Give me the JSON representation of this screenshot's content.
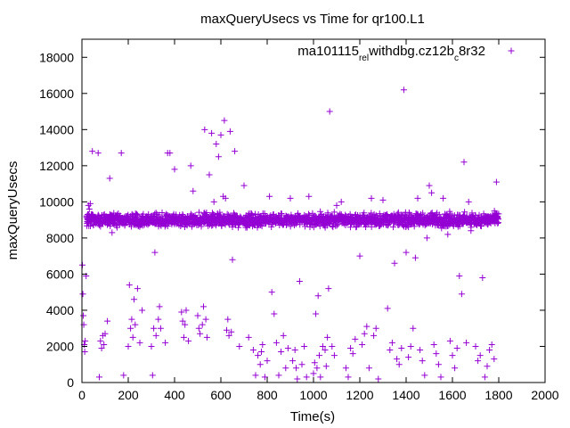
{
  "chart_data": {
    "type": "scatter",
    "title": "maxQueryUsecs vs Time for qr100.L1",
    "xlabel": "Time(s)",
    "ylabel": "maxQueryUsecs",
    "xlim": [
      0,
      2000
    ],
    "ylim": [
      0,
      19000
    ],
    "x_ticks": [
      0,
      200,
      400,
      600,
      800,
      1000,
      1200,
      1400,
      1600,
      1800,
      2000
    ],
    "y_ticks": [
      0,
      2000,
      4000,
      6000,
      8000,
      10000,
      12000,
      14000,
      16000,
      18000
    ],
    "grid": false,
    "legend_position": "top-right",
    "marker": "plus",
    "series": [
      {
        "name": "ma101115_rel_withdbg.cz12b_c8r32",
        "name_parts": [
          {
            "text": "ma101115",
            "sub": false
          },
          {
            "text": "rel",
            "sub": true
          },
          {
            "text": "withdbg.cz12b",
            "sub": false
          },
          {
            "text": "c",
            "sub": true
          },
          {
            "text": "8r32",
            "sub": false
          }
        ],
        "color": "#9400d3",
        "points": [
          [
            2,
            6500
          ],
          [
            4,
            4900
          ],
          [
            6,
            3700
          ],
          [
            8,
            3200
          ],
          [
            10,
            2100
          ],
          [
            12,
            1700
          ],
          [
            14,
            2300
          ],
          [
            18,
            5900
          ],
          [
            22,
            8800
          ],
          [
            25,
            9300
          ],
          [
            28,
            9800
          ],
          [
            32,
            9600
          ],
          [
            36,
            9900
          ],
          [
            40,
            9300
          ],
          [
            45,
            12800
          ],
          [
            50,
            9100
          ],
          [
            60,
            9000
          ],
          [
            70,
            12700
          ],
          [
            75,
            300
          ],
          [
            80,
            2300
          ],
          [
            85,
            1900
          ],
          [
            90,
            2600
          ],
          [
            95,
            2100
          ],
          [
            100,
            2700
          ],
          [
            110,
            3400
          ],
          [
            120,
            11300
          ],
          [
            130,
            8300
          ],
          [
            150,
            9000
          ],
          [
            170,
            12700
          ],
          [
            180,
            400
          ],
          [
            200,
            2000
          ],
          [
            205,
            5400
          ],
          [
            210,
            3000
          ],
          [
            215,
            3500
          ],
          [
            220,
            2500
          ],
          [
            225,
            4600
          ],
          [
            230,
            3200
          ],
          [
            240,
            5200
          ],
          [
            250,
            2200
          ],
          [
            260,
            4000
          ],
          [
            270,
            8900
          ],
          [
            280,
            9200
          ],
          [
            300,
            2000
          ],
          [
            305,
            400
          ],
          [
            310,
            3000
          ],
          [
            315,
            7200
          ],
          [
            320,
            2600
          ],
          [
            330,
            3500
          ],
          [
            335,
            4200
          ],
          [
            340,
            3000
          ],
          [
            360,
            2200
          ],
          [
            370,
            12700
          ],
          [
            380,
            12700
          ],
          [
            400,
            11800
          ],
          [
            410,
            9000
          ],
          [
            430,
            3900
          ],
          [
            435,
            3400
          ],
          [
            440,
            2500
          ],
          [
            445,
            3200
          ],
          [
            450,
            4000
          ],
          [
            460,
            2300
          ],
          [
            470,
            12000
          ],
          [
            480,
            10600
          ],
          [
            500,
            3700
          ],
          [
            505,
            3000
          ],
          [
            510,
            2700
          ],
          [
            520,
            3200
          ],
          [
            525,
            4200
          ],
          [
            530,
            14000
          ],
          [
            535,
            3500
          ],
          [
            540,
            2500
          ],
          [
            550,
            11500
          ],
          [
            560,
            13800
          ],
          [
            570,
            10000
          ],
          [
            580,
            13200
          ],
          [
            590,
            12500
          ],
          [
            600,
            13700
          ],
          [
            610,
            10300
          ],
          [
            615,
            14500
          ],
          [
            620,
            10200
          ],
          [
            625,
            2900
          ],
          [
            630,
            3500
          ],
          [
            635,
            2600
          ],
          [
            640,
            13900
          ],
          [
            645,
            2800
          ],
          [
            650,
            6800
          ],
          [
            660,
            12800
          ],
          [
            680,
            2000
          ],
          [
            700,
            10900
          ],
          [
            720,
            2500
          ],
          [
            740,
            1800
          ],
          [
            750,
            400
          ],
          [
            760,
            1500
          ],
          [
            770,
            1000
          ],
          [
            775,
            1700
          ],
          [
            780,
            2100
          ],
          [
            790,
            300
          ],
          [
            800,
            1200
          ],
          [
            810,
            10300
          ],
          [
            820,
            5000
          ],
          [
            830,
            3800
          ],
          [
            840,
            2200
          ],
          [
            850,
            400
          ],
          [
            860,
            1700
          ],
          [
            870,
            2600
          ],
          [
            880,
            800
          ],
          [
            890,
            1900
          ],
          [
            900,
            10200
          ],
          [
            910,
            1200
          ],
          [
            920,
            1800
          ],
          [
            925,
            800
          ],
          [
            930,
            200
          ],
          [
            940,
            5600
          ],
          [
            950,
            1000
          ],
          [
            960,
            2000
          ],
          [
            970,
            300
          ],
          [
            980,
            10300
          ],
          [
            1000,
            500
          ],
          [
            1005,
            1100
          ],
          [
            1010,
            3800
          ],
          [
            1015,
            800
          ],
          [
            1020,
            4800
          ],
          [
            1025,
            1500
          ],
          [
            1030,
            300
          ],
          [
            1040,
            2000
          ],
          [
            1050,
            1800
          ],
          [
            1055,
            900
          ],
          [
            1060,
            2500
          ],
          [
            1065,
            5200
          ],
          [
            1070,
            15000
          ],
          [
            1080,
            2000
          ],
          [
            1090,
            1500
          ],
          [
            1100,
            9800
          ],
          [
            1120,
            10000
          ],
          [
            1140,
            800
          ],
          [
            1150,
            300
          ],
          [
            1160,
            1900
          ],
          [
            1170,
            1600
          ],
          [
            1180,
            2400
          ],
          [
            1200,
            7000
          ],
          [
            1210,
            2100
          ],
          [
            1220,
            2700
          ],
          [
            1230,
            3100
          ],
          [
            1240,
            800
          ],
          [
            1250,
            10200
          ],
          [
            1260,
            2600
          ],
          [
            1270,
            3000
          ],
          [
            1280,
            200
          ],
          [
            1300,
            10100
          ],
          [
            1320,
            4100
          ],
          [
            1330,
            1800
          ],
          [
            1340,
            2200
          ],
          [
            1350,
            6600
          ],
          [
            1360,
            1300
          ],
          [
            1370,
            1000
          ],
          [
            1380,
            1900
          ],
          [
            1390,
            16200
          ],
          [
            1400,
            7200
          ],
          [
            1410,
            1400
          ],
          [
            1420,
            2000
          ],
          [
            1430,
            3000
          ],
          [
            1440,
            6900
          ],
          [
            1450,
            10200
          ],
          [
            1460,
            1800
          ],
          [
            1470,
            1200
          ],
          [
            1480,
            400
          ],
          [
            1490,
            8000
          ],
          [
            1500,
            10900
          ],
          [
            1510,
            10500
          ],
          [
            1520,
            2100
          ],
          [
            1530,
            1600
          ],
          [
            1540,
            1000
          ],
          [
            1550,
            300
          ],
          [
            1560,
            10200
          ],
          [
            1580,
            8200
          ],
          [
            1590,
            2300
          ],
          [
            1600,
            1500
          ],
          [
            1610,
            800
          ],
          [
            1620,
            1900
          ],
          [
            1630,
            5900
          ],
          [
            1640,
            4900
          ],
          [
            1650,
            12200
          ],
          [
            1660,
            2200
          ],
          [
            1670,
            10000
          ],
          [
            1680,
            8400
          ],
          [
            1700,
            2000
          ],
          [
            1710,
            1200
          ],
          [
            1720,
            1500
          ],
          [
            1730,
            5800
          ],
          [
            1740,
            300
          ],
          [
            1750,
            900
          ],
          [
            1760,
            1800
          ],
          [
            1770,
            2100
          ],
          [
            1780,
            1300
          ],
          [
            1790,
            11100
          ],
          [
            1795,
            9200
          ]
        ]
      }
    ],
    "dense_band": {
      "description_values": "bulk of points near this level",
      "x_range": [
        20,
        1800
      ],
      "y_center": 9000,
      "y_spread": 400
    }
  }
}
